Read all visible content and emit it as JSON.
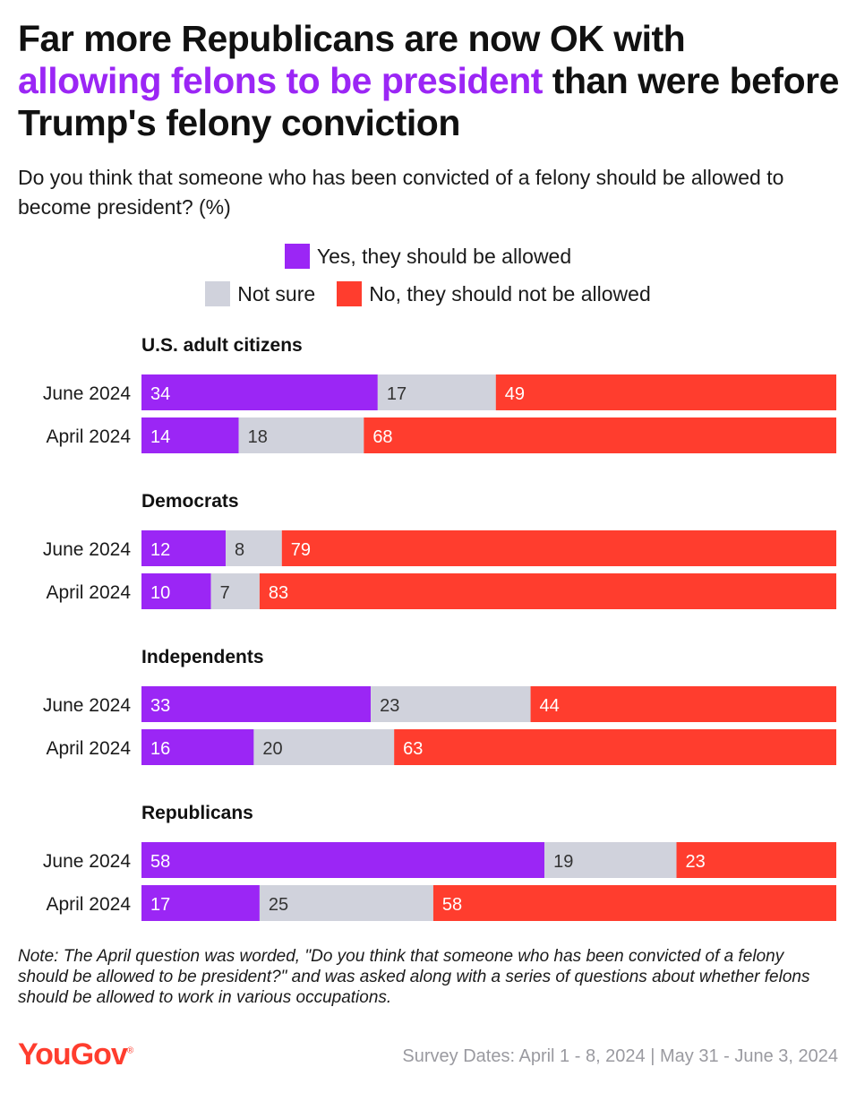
{
  "title": {
    "part1": "Far more Republicans are now OK with",
    "highlight": "allowing felons to be president",
    "part2": "than were before Trump's felony conviction"
  },
  "subtitle": "Do you think that someone who has been convicted of a felony should be allowed to become president? (%)",
  "legend": {
    "yes": "Yes, they should be allowed",
    "not_sure": "Not sure",
    "no": "No, they should not be allowed"
  },
  "colors": {
    "yes": "#9b26f5",
    "not_sure": "#d0d2dc",
    "no": "#ff3d2e",
    "highlight": "#9b26f5"
  },
  "chart_data": {
    "type": "bar",
    "orientation": "horizontal-stacked",
    "xlim": [
      0,
      100
    ],
    "series_names": [
      "Yes, they should be allowed",
      "Not sure",
      "No, they should not be allowed"
    ],
    "groups": [
      {
        "name": "U.S. adult citizens",
        "rows": [
          {
            "label": "June 2024",
            "values": [
              34,
              17,
              49
            ]
          },
          {
            "label": "April 2024",
            "values": [
              14,
              18,
              68
            ]
          }
        ]
      },
      {
        "name": "Democrats",
        "rows": [
          {
            "label": "June 2024",
            "values": [
              12,
              8,
              79
            ]
          },
          {
            "label": "April 2024",
            "values": [
              10,
              7,
              83
            ]
          }
        ]
      },
      {
        "name": "Independents",
        "rows": [
          {
            "label": "June 2024",
            "values": [
              33,
              23,
              44
            ]
          },
          {
            "label": "April 2024",
            "values": [
              16,
              20,
              63
            ]
          }
        ]
      },
      {
        "name": "Republicans",
        "rows": [
          {
            "label": "June 2024",
            "values": [
              58,
              19,
              23
            ]
          },
          {
            "label": "April 2024",
            "values": [
              17,
              25,
              58
            ]
          }
        ]
      }
    ]
  },
  "note": "Note: The April question was worded, \"Do you think that someone who has been convicted of a felony should be allowed to be president?\" and was asked along with a series of questions about whether felons should be allowed to work in various occupations.",
  "brand": "YouGov",
  "brand_mark": "®",
  "survey_dates": "Survey Dates: April 1 - 8, 2024 | May 31 - June 3, 2024"
}
